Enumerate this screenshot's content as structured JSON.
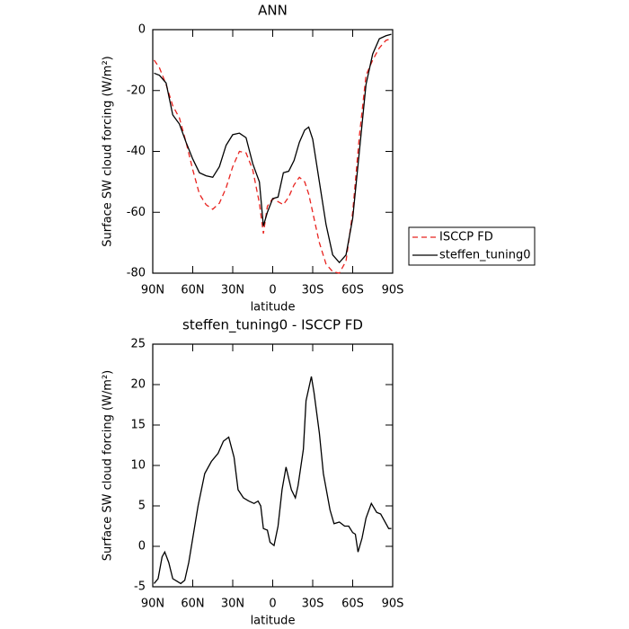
{
  "chart_data": [
    {
      "type": "line",
      "title": "ANN",
      "xlabel": "latitude",
      "ylabel": "Surface SW cloud forcing (W/m²)",
      "x": [
        89,
        85,
        80,
        75,
        70,
        65,
        60,
        55,
        50,
        45,
        40,
        35,
        30,
        25,
        20,
        15,
        10,
        7,
        4,
        0,
        -4,
        -8,
        -12,
        -16,
        -20,
        -24,
        -27,
        -30,
        -35,
        -40,
        -45,
        -50,
        -55,
        -60,
        -65,
        -70,
        -75,
        -80,
        -85,
        -89
      ],
      "series": [
        {
          "name": "ISCCP FD",
          "color": "#e8231f",
          "line_style": "dashed",
          "values": [
            -10,
            -12.5,
            -18,
            -25,
            -29,
            -37,
            -46,
            -54,
            -57.5,
            -59,
            -57,
            -52,
            -45,
            -40,
            -40.5,
            -46,
            -57,
            -67,
            -58,
            -55.5,
            -56.5,
            -57.5,
            -55,
            -51,
            -48.5,
            -50,
            -54,
            -60,
            -70,
            -77,
            -79.5,
            -80,
            -76,
            -60,
            -35,
            -15,
            -10,
            -6,
            -3.5,
            -3
          ]
        },
        {
          "name": "steffen_tuning0",
          "color": "#000000",
          "line_style": "solid",
          "values": [
            -14.3,
            -15,
            -17.5,
            -28,
            -31,
            -37,
            -42.5,
            -47,
            -48,
            -48.5,
            -45,
            -38,
            -34.5,
            -34,
            -35.5,
            -44,
            -50,
            -64.5,
            -60,
            -55.5,
            -55,
            -47,
            -46.5,
            -43,
            -37,
            -33,
            -32,
            -36,
            -50,
            -64,
            -74,
            -76.5,
            -74,
            -62,
            -40,
            -18,
            -8,
            -3,
            -2,
            -1.5
          ]
        }
      ],
      "xlim": [
        90,
        -90
      ],
      "xticks": [
        {
          "value": 90,
          "label": "90N"
        },
        {
          "value": 60,
          "label": "60N"
        },
        {
          "value": 30,
          "label": "30N"
        },
        0,
        {
          "value": -30,
          "label": "30S"
        },
        {
          "value": -60,
          "label": "60S"
        },
        {
          "value": -90,
          "label": "90S"
        }
      ],
      "ylim": [
        -80,
        0
      ],
      "yticks": [
        -80,
        -60,
        -40,
        -20,
        0
      ],
      "legend": "right"
    },
    {
      "type": "line",
      "title": "steffen_tuning0 - ISCCP FD",
      "xlabel": "latitude",
      "ylabel": "Surface SW cloud forcing (W/m²)",
      "x": [
        89,
        86,
        83,
        81,
        78,
        75,
        72,
        69,
        66,
        63,
        60,
        56,
        51,
        46,
        41,
        37,
        33,
        29,
        26,
        22,
        18,
        14,
        11,
        9,
        7,
        4,
        2,
        -1,
        -4,
        -7,
        -10,
        -14,
        -17,
        -19,
        -23,
        -25,
        -29,
        -31,
        -35,
        -38,
        -43,
        -46,
        -50,
        -54,
        -57,
        -60,
        -62,
        -64,
        -67,
        -70,
        -74,
        -78,
        -81,
        -85,
        -87,
        -89
      ],
      "series": [
        {
          "color": "#000000",
          "line_style": "solid",
          "values": [
            -4.6,
            -4,
            -1.3,
            -0.7,
            -2,
            -4,
            -4.3,
            -4.6,
            -4.2,
            -2,
            1,
            5,
            9,
            10.5,
            11.5,
            13,
            13.5,
            11,
            7,
            6,
            5.6,
            5.3,
            5.6,
            5,
            2.2,
            2,
            0.5,
            0.1,
            2.5,
            7,
            9.8,
            7,
            6,
            7.5,
            12,
            18,
            21,
            19,
            14,
            9,
            4.5,
            2.8,
            3,
            2.5,
            2.5,
            1.7,
            1.5,
            -0.7,
            1,
            3.5,
            5.3,
            4.2,
            4,
            2.8,
            2.2,
            2.2
          ]
        }
      ],
      "xlim": [
        90,
        -90
      ],
      "xticks": [
        {
          "value": 90,
          "label": "90N"
        },
        {
          "value": 60,
          "label": "60N"
        },
        {
          "value": 30,
          "label": "30N"
        },
        0,
        {
          "value": -30,
          "label": "30S"
        },
        {
          "value": -60,
          "label": "60S"
        },
        {
          "value": -90,
          "label": "90S"
        }
      ],
      "ylim": [
        -5,
        25
      ],
      "yticks": [
        -5,
        0,
        5,
        10,
        15,
        20,
        25
      ]
    }
  ]
}
